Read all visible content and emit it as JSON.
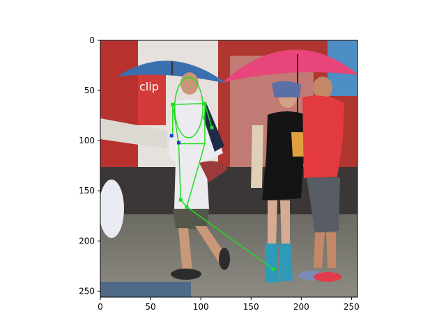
{
  "axes": {
    "x_ticks": [
      "0",
      "50",
      "100",
      "150",
      "200",
      "250"
    ],
    "y_ticks": [
      "0",
      "50",
      "100",
      "150",
      "200",
      "250"
    ],
    "x_range": [
      0,
      256
    ],
    "y_range": [
      0,
      256
    ],
    "y_inverted": true
  },
  "scene": {
    "left_umbrella_color": "#3a6fb0",
    "right_umbrella_color": "#e8457a",
    "store_sign_text": "clip"
  },
  "overlay": {
    "skeleton_color": "#22dd22",
    "joint_color": "#22dd22",
    "alt_joint_color": "#1f3fd0",
    "lines": [
      [
        [
          72,
          64
        ],
        [
          104,
          63
        ]
      ],
      [
        [
          104,
          63
        ],
        [
          111,
          87
        ]
      ],
      [
        [
          72,
          64
        ],
        [
          72,
          93
        ]
      ],
      [
        [
          72,
          64
        ],
        [
          78,
          103
        ]
      ],
      [
        [
          104,
          63
        ],
        [
          104,
          103
        ]
      ],
      [
        [
          78,
          103
        ],
        [
          104,
          103
        ]
      ],
      [
        [
          78,
          103
        ],
        [
          80,
          159
        ]
      ],
      [
        [
          104,
          103
        ],
        [
          86,
          166
        ]
      ],
      [
        [
          80,
          159
        ],
        [
          86,
          166
        ]
      ],
      [
        [
          86,
          166
        ],
        [
          172,
          228
        ]
      ]
    ],
    "head_ellipse": [
      88,
      67,
      14,
      30
    ],
    "joints_green": [
      [
        72,
        64
      ],
      [
        104,
        63
      ],
      [
        111,
        87
      ],
      [
        80,
        159
      ],
      [
        86,
        166
      ],
      [
        172,
        228
      ]
    ],
    "joints_blue": [
      [
        71,
        95
      ],
      [
        78,
        102
      ]
    ]
  }
}
